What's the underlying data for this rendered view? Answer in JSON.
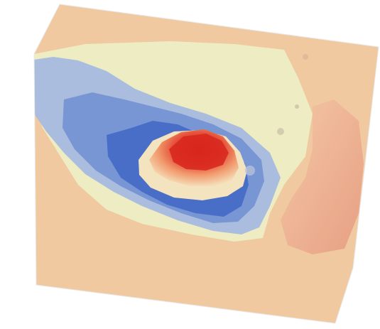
{
  "image": {
    "subject": "terrain-surface-3d-view",
    "colors": {
      "background": "#ffffff",
      "lowland": "#f0c79d",
      "midland": "#efeec2",
      "depression_light": "#9bb1dd",
      "depression_mid": "#6f8fd2",
      "depression_deep": "#3f66c8",
      "peak_low": "#f4d8b2",
      "peak_mid": "#f09a6a",
      "peak_high": "#df3a2a",
      "ridge": "#e9a98b"
    }
  }
}
